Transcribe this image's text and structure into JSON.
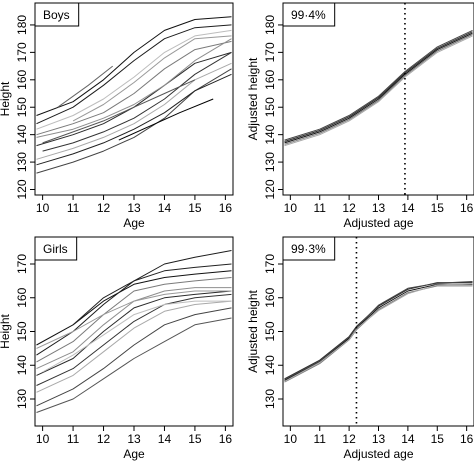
{
  "chart_data": [
    {
      "type": "line",
      "id": "p1",
      "title": "Boys",
      "xlabel": "Age",
      "ylabel": "Height",
      "xlim": [
        9.75,
        16.25
      ],
      "ylim": [
        118,
        188
      ],
      "xticks": [
        10,
        11,
        12,
        13,
        14,
        15,
        16
      ],
      "yticks": [
        120,
        130,
        140,
        150,
        160,
        170,
        180
      ],
      "vline": null,
      "series": [
        {
          "x": [
            9.8,
            11,
            12,
            13,
            14,
            15,
            16.2
          ],
          "y": [
            147,
            152,
            160,
            170,
            178,
            182,
            183
          ]
        },
        {
          "x": [
            9.8,
            11,
            12,
            13,
            14,
            15,
            16.2
          ],
          "y": [
            140,
            144,
            148,
            155,
            164,
            171,
            174
          ]
        },
        {
          "x": [
            9.8,
            11,
            12,
            13,
            14,
            15,
            16.2
          ],
          "y": [
            136,
            140,
            144,
            150,
            158,
            166,
            170
          ]
        },
        {
          "x": [
            9.8,
            11,
            12,
            13,
            14,
            15,
            16.2
          ],
          "y": [
            131,
            135,
            139,
            144,
            151,
            160,
            166
          ]
        },
        {
          "x": [
            9.8,
            11,
            12,
            13,
            14,
            15,
            16.2
          ],
          "y": [
            126,
            130,
            134,
            139,
            146,
            156,
            164
          ]
        },
        {
          "x": [
            9.8,
            11,
            12,
            13,
            14,
            15,
            16.2
          ],
          "y": [
            144,
            150,
            158,
            167,
            175,
            179,
            180
          ]
        },
        {
          "x": [
            9.8,
            11,
            12,
            13,
            14,
            15,
            16.2
          ],
          "y": [
            139,
            142,
            146,
            151,
            158,
            167,
            175
          ]
        },
        {
          "x": [
            10,
            11,
            12,
            13,
            14,
            15,
            16.2
          ],
          "y": [
            134,
            137,
            141,
            146,
            153,
            162,
            170
          ]
        },
        {
          "x": [
            9.8,
            11,
            12,
            13,
            14,
            15,
            16.2
          ],
          "y": [
            142,
            147,
            153,
            161,
            170,
            176,
            178
          ]
        },
        {
          "x": [
            10,
            11,
            12,
            13,
            14,
            15
          ],
          "y": [
            137,
            141,
            145,
            150,
            155,
            160
          ]
        },
        {
          "x": [
            9.8,
            11,
            12,
            13,
            14,
            15,
            16.2
          ],
          "y": [
            129,
            133,
            137,
            142,
            148,
            156,
            162
          ]
        },
        {
          "x": [
            11,
            12,
            13,
            14,
            15,
            16.2
          ],
          "y": [
            145,
            151,
            159,
            168,
            175,
            176
          ]
        },
        {
          "x": [
            10.5,
            11.5,
            12.3
          ],
          "y": [
            150,
            158,
            165
          ]
        },
        {
          "x": [
            12.5,
            13.5,
            14.5,
            15.6
          ],
          "y": [
            138,
            143,
            148,
            153
          ]
        }
      ]
    },
    {
      "type": "line",
      "id": "p2",
      "title": "99·4%",
      "xlabel": "Adjusted age",
      "ylabel": "Adjusted height",
      "xlim": [
        9.75,
        16.25
      ],
      "ylim": [
        118,
        188
      ],
      "xticks": [
        10,
        11,
        12,
        13,
        14,
        15,
        16
      ],
      "yticks": [
        120,
        130,
        140,
        150,
        160,
        170,
        180
      ],
      "vline": 13.9,
      "series": [
        {
          "x": [
            9.8,
            11,
            12,
            13,
            13.9,
            15,
            16.2
          ],
          "y": [
            137,
            141,
            146,
            153,
            162,
            171,
            177
          ]
        },
        {
          "x": [
            9.8,
            11,
            12,
            13,
            13.9,
            15,
            16.2
          ],
          "y": [
            136.5,
            140.5,
            145.5,
            152.5,
            161.5,
            170.5,
            176.5
          ]
        },
        {
          "x": [
            9.8,
            11,
            12,
            13,
            13.9,
            15,
            16.2
          ],
          "y": [
            137.5,
            141.5,
            146.5,
            153.5,
            162.5,
            171.5,
            177.5
          ]
        },
        {
          "x": [
            9.8,
            11,
            12,
            13,
            13.9,
            15,
            16.2
          ],
          "y": [
            136,
            140,
            145,
            152,
            161,
            170,
            176
          ]
        },
        {
          "x": [
            9.8,
            11,
            12,
            13,
            13.9,
            15,
            16.2
          ],
          "y": [
            138,
            142,
            147,
            154,
            163,
            172,
            178
          ]
        }
      ]
    },
    {
      "type": "line",
      "id": "p3",
      "title": "Girls",
      "xlabel": "Age",
      "ylabel": "Height",
      "xlim": [
        9.75,
        16.25
      ],
      "ylim": [
        122,
        178
      ],
      "xticks": [
        10,
        11,
        12,
        13,
        14,
        15,
        16
      ],
      "yticks": [
        130,
        140,
        150,
        160,
        170
      ],
      "vline": null,
      "series": [
        {
          "x": [
            9.8,
            11,
            12,
            13,
            14,
            15,
            16.2
          ],
          "y": [
            146,
            152,
            159,
            164,
            166,
            167,
            168
          ]
        },
        {
          "x": [
            9.8,
            11,
            12,
            13,
            14,
            15,
            16.2
          ],
          "y": [
            141,
            147,
            155,
            162,
            164,
            165,
            166
          ]
        },
        {
          "x": [
            9.8,
            11,
            12,
            13,
            14,
            15,
            16.2
          ],
          "y": [
            137,
            142,
            150,
            157,
            160,
            161,
            162
          ]
        },
        {
          "x": [
            9.8,
            11,
            12,
            13,
            14,
            15,
            16.2
          ],
          "y": [
            132,
            137,
            144,
            151,
            156,
            158,
            159
          ]
        },
        {
          "x": [
            9.8,
            11,
            12,
            13,
            14,
            15,
            16.2
          ],
          "y": [
            128,
            133,
            139,
            146,
            152,
            155,
            157
          ]
        },
        {
          "x": [
            9.8,
            11,
            12,
            13,
            14,
            15,
            16.2
          ],
          "y": [
            143,
            150,
            158,
            165,
            170,
            172,
            174
          ]
        },
        {
          "x": [
            9.8,
            11,
            12,
            13,
            14,
            15,
            16.2
          ],
          "y": [
            139,
            144,
            152,
            159,
            162,
            163,
            163
          ]
        },
        {
          "x": [
            9.8,
            11,
            12,
            13,
            14,
            15,
            16.2
          ],
          "y": [
            134,
            139,
            146,
            153,
            158,
            160,
            161
          ]
        },
        {
          "x": [
            10,
            11,
            12,
            13,
            14,
            15,
            16.2
          ],
          "y": [
            138,
            143,
            149,
            155,
            158,
            159,
            159
          ]
        },
        {
          "x": [
            9.8,
            11,
            12,
            13,
            14,
            15,
            16.2
          ],
          "y": [
            126,
            130,
            136,
            142,
            147,
            152,
            154
          ]
        },
        {
          "x": [
            11,
            12,
            13,
            14,
            15,
            16.2
          ],
          "y": [
            152,
            160,
            165,
            168,
            169,
            170
          ]
        },
        {
          "x": [
            9.8,
            11,
            12,
            13,
            14,
            15,
            16.2
          ],
          "y": [
            145,
            150,
            155,
            159,
            161,
            162,
            162
          ]
        }
      ]
    },
    {
      "type": "line",
      "id": "p4",
      "title": "99·3%",
      "xlabel": "Adjusted age",
      "ylabel": "Adjusted height",
      "xlim": [
        9.75,
        16.25
      ],
      "ylim": [
        122,
        178
      ],
      "xticks": [
        10,
        11,
        12,
        13,
        14,
        15,
        16
      ],
      "yticks": [
        130,
        140,
        150,
        160,
        170
      ],
      "vline": 12.25,
      "series": [
        {
          "x": [
            9.8,
            11,
            12,
            12.25,
            13,
            14,
            15,
            16.2
          ],
          "y": [
            135.5,
            141,
            148,
            151,
            157,
            162,
            164,
            164
          ]
        },
        {
          "x": [
            9.8,
            11,
            12,
            12.25,
            13,
            14,
            15,
            16.2
          ],
          "y": [
            135,
            140.5,
            147.5,
            150.5,
            156.5,
            161.5,
            163.5,
            163.5
          ]
        },
        {
          "x": [
            9.8,
            11,
            12,
            12.25,
            13,
            14,
            15,
            16.2
          ],
          "y": [
            136,
            141.5,
            148.5,
            151.5,
            157.5,
            162.5,
            164.5,
            164.5
          ]
        },
        {
          "x": [
            9.8,
            11,
            12,
            12.25,
            13,
            14,
            15,
            16.2
          ],
          "y": [
            135.2,
            140.8,
            147.6,
            150.8,
            156.2,
            161.2,
            163.8,
            164.2
          ]
        },
        {
          "x": [
            9.8,
            11,
            12,
            12.25,
            13,
            14,
            15,
            16.2
          ],
          "y": [
            135.8,
            141.2,
            148.3,
            151.2,
            157.8,
            162.8,
            164.3,
            164.8
          ]
        }
      ]
    }
  ]
}
